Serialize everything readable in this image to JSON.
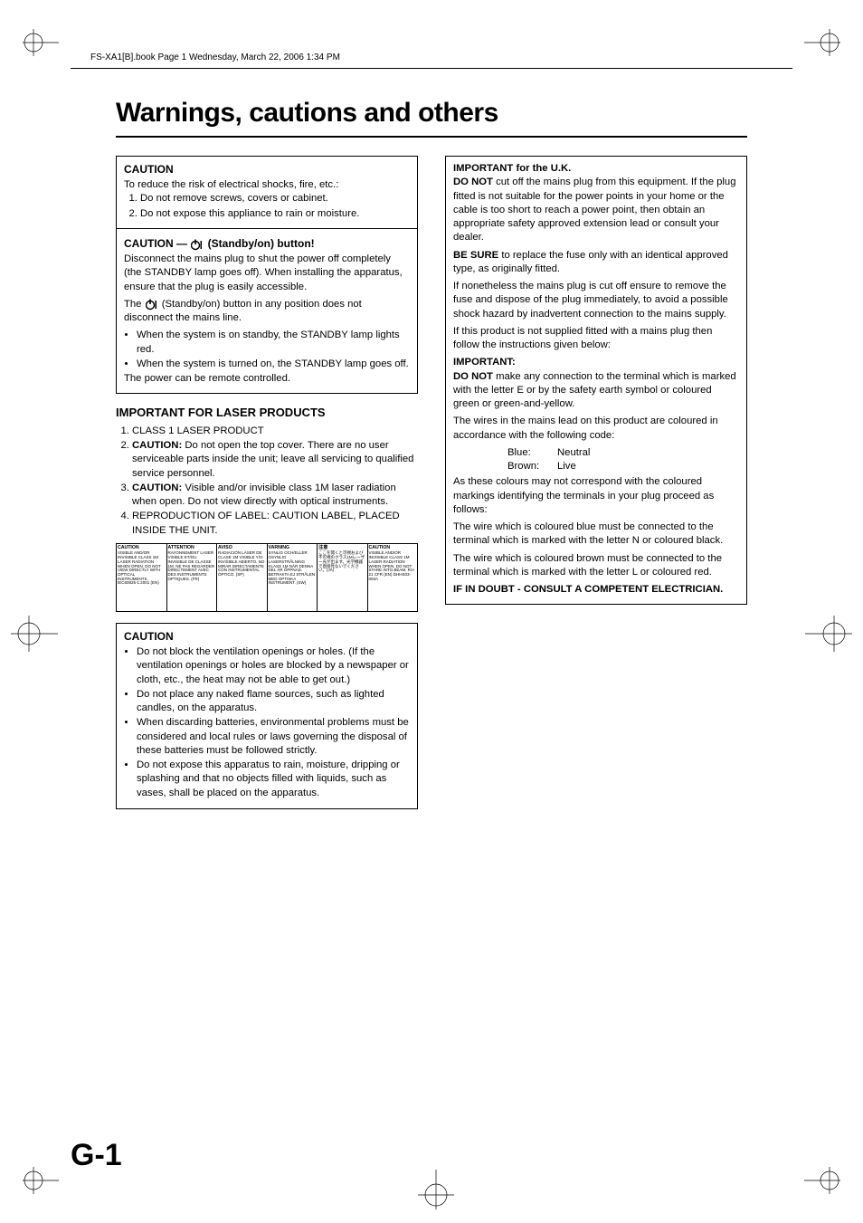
{
  "header": "FS-XA1[B].book  Page 1  Wednesday, March 22, 2006  1:34 PM",
  "title": "Warnings, cautions and others",
  "page_number": "G-1",
  "colors": {
    "text": "#000000",
    "bg": "#ffffff",
    "rule": "#000000"
  },
  "fonts": {
    "body_pt": 11,
    "title_pt": 30,
    "pagenum_pt": 34
  },
  "left": {
    "caution1": {
      "heading": "CAUTION",
      "intro": "To reduce the risk of electrical shocks, fire, etc.:",
      "items": [
        "Do not remove screws, covers or cabinet.",
        "Do not expose this appliance to rain or moisture."
      ]
    },
    "standby": {
      "heading_prefix": "CAUTION — ",
      "heading_suffix": " (Standby/on) button!",
      "p1": "Disconnect the mains plug to shut the power off completely (the STANDBY lamp goes off). When installing the apparatus, ensure that the plug is easily accessible.",
      "p2a": "The ",
      "p2b": " (Standby/on) button in any position does not disconnect the mains line.",
      "bullets": [
        "When the system is on standby, the STANDBY lamp lights red.",
        "When the system is turned on, the STANDBY lamp goes off."
      ],
      "p3": "The power can be remote controlled."
    },
    "laser": {
      "heading": "IMPORTANT FOR LASER PRODUCTS",
      "items": [
        {
          "plain": "CLASS 1 LASER PRODUCT"
        },
        {
          "lead": "CAUTION:",
          "rest": " Do not open the top cover. There are no user serviceable parts inside the unit; leave all servicing to qualified service personnel."
        },
        {
          "lead": "CAUTION:",
          "rest": " Visible and/or invisible class 1M laser radiation when open. Do not view directly with optical instruments."
        },
        {
          "plain": "REPRODUCTION OF LABEL: CAUTION LABEL, PLACED INSIDE THE UNIT."
        }
      ],
      "label_panels": [
        {
          "h": "CAUTION",
          "t": "VISIBLE AND/OR INVISIBLE CLASS 1M LASER RADIATION WHEN OPEN. DO NOT VIEW DIRECTLY WITH OPTICAL INSTRUMENTS. IEC60825-1:2001 (EN)"
        },
        {
          "h": "ATTENTION",
          "t": "RAYONNEMENT LASER VISIBLE ET/OU INVISIBLE DE CLASSE 1M. NE PAS REGARDER DIRECTEMENT AVEC DES INSTRUMENTS OPTIQUES. (FR)"
        },
        {
          "h": "AVISO",
          "t": "RADIACIÓN LÁSER DE CLASE 1M VISIBLE Y/O INVISIBLE ABIERTO. NO MIRAR DIRECTAMENTE CON INSTRUMENTAL ÓPTICO. (SP)"
        },
        {
          "h": "VARNING",
          "t": "SYNLIG OCH/ELLER OSYNLIG LASERSTRÅLNING KLASS 1M NÄR DENNA DEL ÄR ÖPPNAD. BETRAKTA EJ STRÅLEN MED OPTISKA INSTRUMENT. (SW)"
        },
        {
          "h": "注意",
          "t": "ここを開くと可視および不可視のクラス1Mレーザー光が出ます。光学機器で直接見ないでください。(JA)"
        },
        {
          "h": "CAUTION",
          "t": "VISIBLE AND/OR INVISIBLE CLASS 1M LASER RADIATION WHEN OPEN. DO NOT STARE INTO BEAM. R/A 21 CFR (EN) DHHS03-003A"
        }
      ]
    },
    "caution2": {
      "heading": "CAUTION",
      "bullets": [
        "Do not block the ventilation openings or holes. (If the ventilation openings or holes are blocked by a newspaper or cloth, etc., the heat may not be able to get out.)",
        "Do not place any naked flame sources, such as lighted candles, on the apparatus.",
        "When discarding batteries, environmental problems must be considered and local rules or laws governing the disposal of these batteries must be followed strictly.",
        "Do not expose this apparatus to rain, moisture, dripping or splashing and that no objects filled with liquids, such as vases, shall be placed on the apparatus."
      ]
    }
  },
  "right": {
    "uk": {
      "heading": "IMPORTANT for the U.K.",
      "p1_lead": "DO NOT",
      "p1": " cut off the mains plug from this equipment. If the plug fitted is not suitable for the power points in your home or the cable is too short to reach a power point, then obtain an appropriate safety approved extension lead or consult your dealer.",
      "p2_lead": "BE SURE",
      "p2": " to replace the fuse only with an identical approved type, as originally fitted.",
      "p3": "If nonetheless the mains plug is cut off ensure to remove the fuse and dispose of the plug immediately, to avoid a possible shock hazard by inadvertent connection to the mains supply.",
      "p4": "If this product is not supplied fitted with a mains plug then follow the instructions given below:",
      "imp_label": "IMPORTANT:",
      "p5_lead": "DO NOT",
      "p5": " make any connection to the terminal which is marked with the letter E or by the safety earth symbol or coloured green or green-and-yellow.",
      "p6": "The wires in the mains lead on this product are coloured in accordance with the following code:",
      "color_rows": [
        {
          "k": "Blue:",
          "v": "Neutral"
        },
        {
          "k": "Brown:",
          "v": "Live"
        }
      ],
      "p7": "As these colours may not correspond with the coloured markings identifying the terminals in your plug proceed as follows:",
      "p8": "The wire which is coloured blue must be connected to the terminal which is marked with the letter N or coloured black.",
      "p9": "The wire which is coloured brown must be connected to the terminal which is marked with the letter L or coloured red.",
      "doubt": "IF IN DOUBT - CONSULT A COMPETENT ELECTRICIAN."
    }
  }
}
